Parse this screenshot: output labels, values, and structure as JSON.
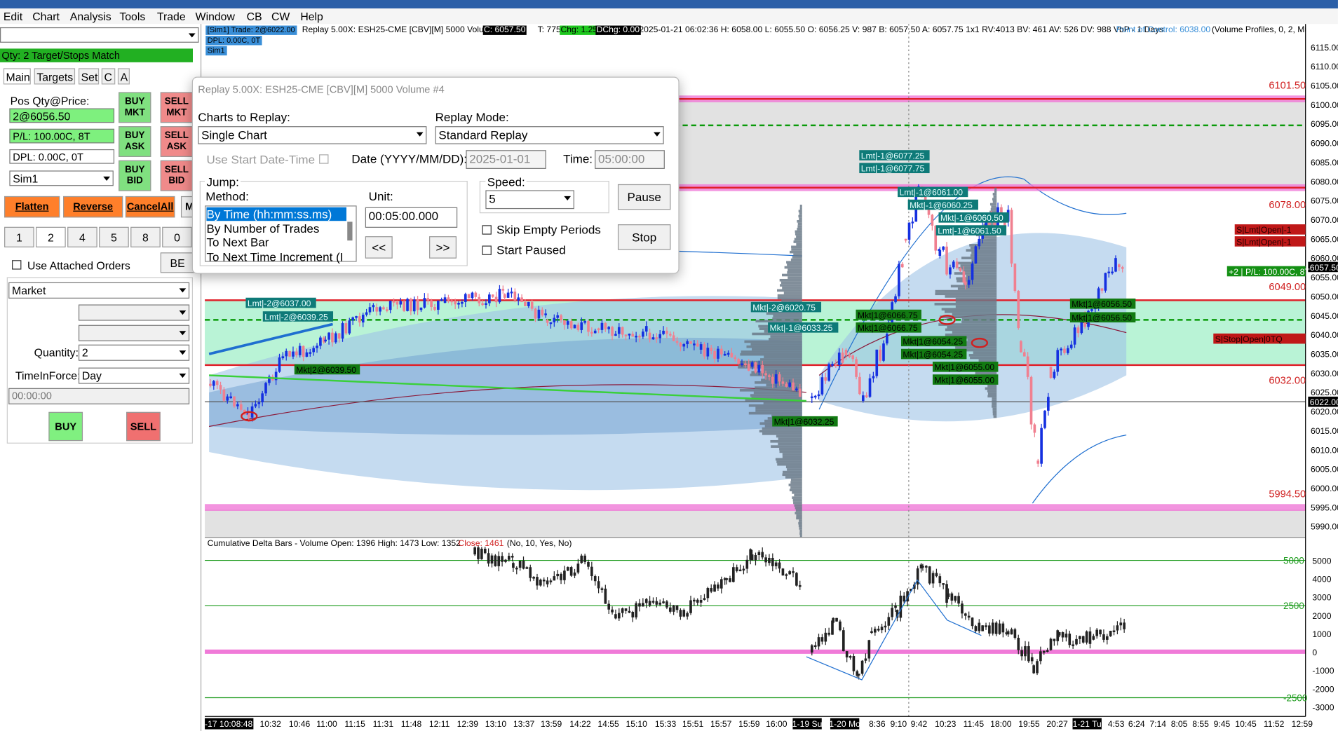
{
  "menu": [
    "Edit",
    "Chart",
    "Analysis",
    "Tools",
    "Trade",
    "Window",
    "CB",
    "CW",
    "Help"
  ],
  "trade_panel": {
    "status": "Qty: 2 Target/Stops Match",
    "tabs": [
      "Main",
      "Targets",
      "Set",
      "C",
      "A"
    ],
    "pos_label": "Pos Qty@Price:",
    "pos_value": "2@6056.50",
    "pl_value": "P/L: 100.00C, 8T",
    "dpl_value": "DPL: 0.00C, 0T",
    "account": "Sim1",
    "buy_mkt": "BUY MKT",
    "sell_mkt": "SELL MKT",
    "buy_ask": "BUY ASK",
    "sell_ask": "SELL ASK",
    "buy_bid": "BUY BID",
    "sell_bid": "SELL BID",
    "actions": [
      "Flatten",
      "Reverse",
      "CancelAll",
      "M"
    ],
    "qty_buttons": [
      "1",
      "2",
      "4",
      "5",
      "8",
      "0"
    ],
    "use_attached": "Use Attached Orders",
    "be": "BE",
    "order_type": "Market",
    "quantity_label": "Quantity:",
    "quantity": "2",
    "tif_label": "TimeInForce:",
    "tif": "Day",
    "time": "00:00:00",
    "buy": "BUY",
    "sell": "SELL"
  },
  "dialog": {
    "title": "Replay 5.00X: ESH25-CME [CBV][M]  5000 Volume #4",
    "charts_label": "Charts to Replay:",
    "charts_value": "Single Chart",
    "mode_label": "Replay Mode:",
    "mode_value": "Standard Replay",
    "use_start": "Use Start Date-Time",
    "date_label": "Date (YYYY/MM/DD):",
    "date_value": "2025-01-01",
    "time_label": "Time:",
    "time_value": "05:00:00",
    "jump_label": "Jump:",
    "method_label": "Method:",
    "methods": [
      "By Time (hh:mm:ss.ms)",
      "By Number of Trades",
      "To Next Bar",
      "To Next Time Increment (I"
    ],
    "unit_label": "Unit:",
    "unit_value": "00:05:00.000",
    "back": "<<",
    "forward": ">>",
    "speed_label": "Speed:",
    "speed_value": "5",
    "skip_empty": "Skip Empty Periods",
    "start_paused": "Start Paused",
    "pause": "Pause",
    "stop": "Stop"
  },
  "chart": {
    "sim_trade": "[Sim1]  Trade: 2@6022.00",
    "sim_dpl": "DPL: 0.00C, 0T",
    "sim_name": "Sim1",
    "header": "Replay 5.00X: ESH25-CME [CBV][M]  5000 Volume #4",
    "close": "C: 6057.50",
    "trades": "T: 775",
    "change": "Chg: 1.25",
    "dchange": "DChg: 0.00",
    "stats": "2025-01-21 06:02:36 H: 6058.00 L: 6055.50 O: 6056.25 V: 987 B: 6057.50 A: 6057.75 1x1 RV:4013 BV: 461 AV: 526 DV: 988 VbP - 1 Days",
    "poc": "Point of Control: 6038.00",
    "profile": "(Volume Profiles, 0, 2, Mu",
    "price_axis": [
      "6115.00",
      "6110.00",
      "6105.00",
      "6100.00",
      "6095.00",
      "6090.00",
      "6085.00",
      "6080.00",
      "6075.00",
      "6070.00",
      "6065.00",
      "6060.00",
      "6055.00",
      "6050.00",
      "6045.00",
      "6040.00",
      "6035.00",
      "6030.00",
      "6025.00",
      "6020.00",
      "6015.00",
      "6010.00",
      "6005.00",
      "6000.00",
      "5995.00",
      "5990.00"
    ],
    "price_tags": [
      "6057.50",
      "6022.00"
    ],
    "levels": [
      "6101.50",
      "6078.00",
      "6049.00",
      "6032.00",
      "5994.50"
    ],
    "orders": [
      "Lmt|-1@6077.25",
      "Lmt|-1@6077.75",
      "Lmt|-1@6061.00",
      "Mkt|-1@6060.25",
      "Mkt|-1@6060.50",
      "Lmt|-1@6061.50",
      "Lmt|-2@6037.00",
      "Lmt|-2@6039.25",
      "Mkt|2@6039.50",
      "Mkt|-2@6020.75",
      "Mkt|-1@6033.25",
      "Mkt|1@6066.75",
      "Mkt|1@6066.75",
      "Mkt|1@6054.25",
      "Mkt|1@6054.25",
      "Mkt|1@6055.00",
      "Mkt|1@6055.00",
      "Mkt|1@6032.25",
      "Mkt|1@6056.50",
      "Mkt|1@6056.50"
    ],
    "right_orders": [
      "S|Lmt|Open|-1",
      "S|Lmt|Open|-1",
      "+2 | P/L: 100.00C, 8T",
      "S|Stop|Open|0TQ"
    ],
    "delta_header": "Cumulative Delta Bars - Volume  Open: 1396  High: 1473  Low: 1352",
    "delta_close": "Close: 1461",
    "delta_params": "(No, 10, Yes, No)",
    "delta_axis": [
      "5000",
      "4000",
      "3000",
      "2000",
      "1000",
      "0",
      "-1000",
      "-2000",
      "-3000"
    ],
    "delta_levels": [
      "5000",
      "2500",
      "-2500"
    ],
    "time_axis": [
      "-17 10:08:48",
      "10:32",
      "10:46",
      "11:00",
      "11:15",
      "11:31",
      "11:48",
      "12:11",
      "12:39",
      "13:10",
      "13:37",
      "13:59",
      "14:22",
      "14:55",
      "15:10",
      "15:33",
      "15:51",
      "15:57",
      "15:59",
      "16:00",
      "1-19 Su",
      "1-20 Mo",
      "8:36",
      "9:10",
      "9:42",
      "10:23",
      "11:45",
      "18:00",
      "19:55",
      "20:27",
      "1-21 Tu",
      "4:53",
      "6:24",
      "7:14",
      "8:05",
      "8:55",
      "9:45",
      "10:45",
      "11:52",
      "12:59"
    ]
  }
}
